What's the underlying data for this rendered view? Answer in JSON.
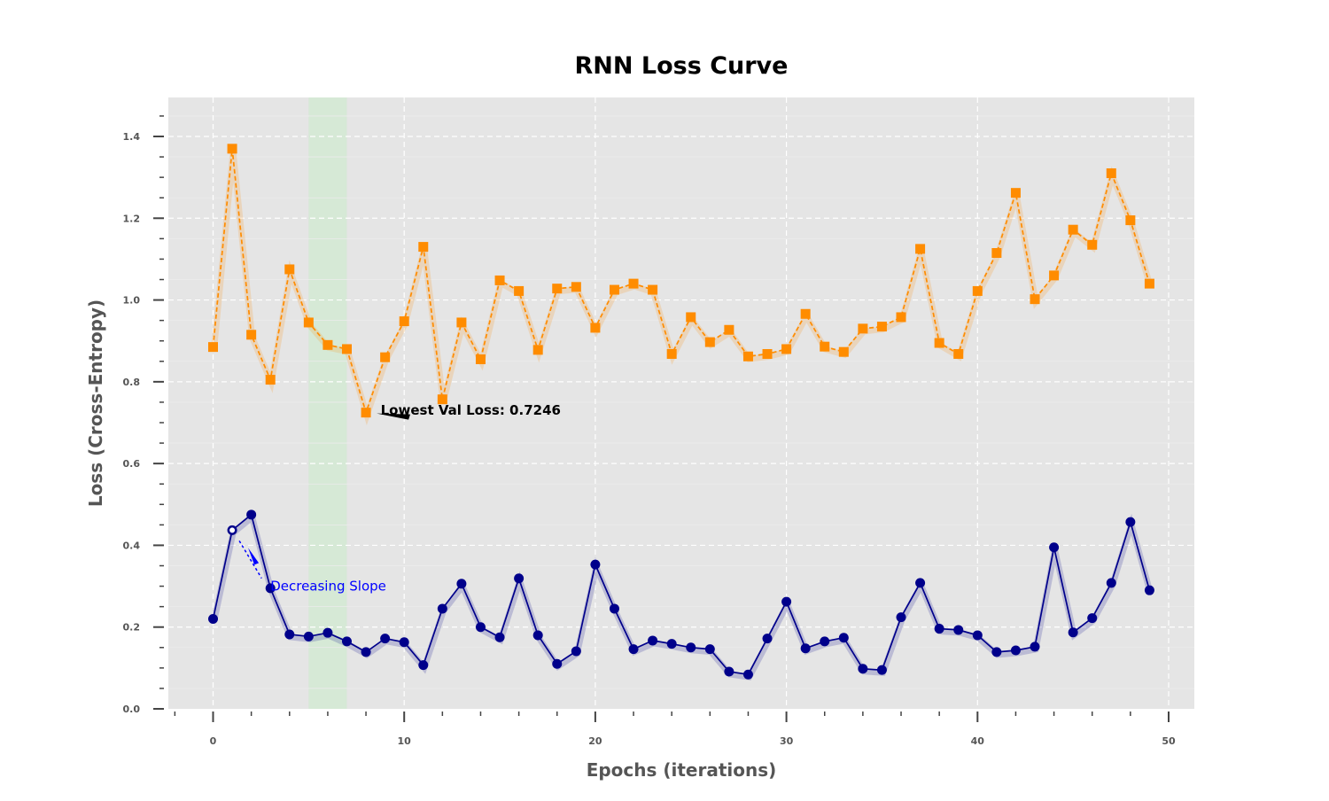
{
  "chart_data": {
    "type": "line",
    "title": "RNN Loss Curve",
    "xlabel": "Epochs (iterations)",
    "ylabel": "Loss (Cross-Entropy)",
    "xlim": [
      -2,
      51
    ],
    "ylim": [
      0,
      1.5
    ],
    "x_ticks": [
      0,
      10,
      20,
      30,
      40,
      50
    ],
    "y_ticks": [
      0.0,
      0.2,
      0.4,
      0.6,
      0.8,
      1.0,
      1.2,
      1.4
    ],
    "x_tick_labels": [
      "0",
      "10",
      "20",
      "30",
      "40",
      "50"
    ],
    "y_tick_labels": [
      "0.0",
      "0.2",
      "0.4",
      "0.6",
      "0.8",
      "1.0",
      "1.2",
      "1.4"
    ],
    "grid": true,
    "background_color": "#e5e5e5",
    "highlight_span": {
      "x_start": 5,
      "x_end": 7,
      "color": "#d4e9d4"
    },
    "x": [
      0,
      1,
      2,
      3,
      4,
      5,
      6,
      7,
      8,
      9,
      10,
      11,
      12,
      13,
      14,
      15,
      16,
      17,
      18,
      19,
      20,
      21,
      22,
      23,
      24,
      25,
      26,
      27,
      28,
      29,
      30,
      31,
      32,
      33,
      34,
      35,
      36,
      37,
      38,
      39,
      40,
      41,
      42,
      43,
      44,
      45,
      46,
      47,
      48,
      49
    ],
    "series": [
      {
        "key": "val",
        "color": "#ff8c00",
        "line_style": "dashed",
        "marker": "square",
        "values": [
          0.885,
          1.37,
          0.915,
          0.805,
          1.075,
          0.945,
          0.89,
          0.88,
          0.7246,
          0.86,
          0.948,
          1.13,
          0.757,
          0.945,
          0.855,
          1.048,
          1.022,
          0.878,
          1.028,
          1.032,
          0.932,
          1.025,
          1.04,
          1.025,
          0.868,
          0.958,
          0.897,
          0.927,
          0.862,
          0.868,
          0.88,
          0.966,
          0.886,
          0.873,
          0.93,
          0.935,
          0.958,
          1.125,
          0.895,
          0.868,
          1.022,
          1.115,
          1.262,
          1.002,
          1.06,
          1.172,
          1.135,
          1.31,
          1.195,
          1.04
        ]
      },
      {
        "key": "train",
        "color": "#00008b",
        "line_style": "solid",
        "marker": "circle",
        "values": [
          0.22,
          0.437,
          0.475,
          0.295,
          0.182,
          0.177,
          0.186,
          0.165,
          0.139,
          0.172,
          0.163,
          0.107,
          0.245,
          0.306,
          0.2,
          0.175,
          0.319,
          0.18,
          0.11,
          0.141,
          0.353,
          0.245,
          0.146,
          0.167,
          0.159,
          0.15,
          0.146,
          0.091,
          0.084,
          0.172,
          0.262,
          0.148,
          0.165,
          0.174,
          0.098,
          0.095,
          0.224,
          0.308,
          0.196,
          0.193,
          0.18,
          0.139,
          0.143,
          0.152,
          0.395,
          0.187,
          0.222,
          0.308,
          0.457,
          0.29
        ]
      }
    ],
    "annotations": [
      {
        "text": "Lowest Val Loss: 0.7246",
        "x": 8,
        "y": 0.7246,
        "text_x": 9,
        "text_y": 0.73,
        "color": "#000000"
      },
      {
        "text": "Decreasing Slope",
        "x": 1,
        "y": 0.437,
        "text_x": 3,
        "text_y": 0.3,
        "color": "#0000ff"
      }
    ]
  }
}
